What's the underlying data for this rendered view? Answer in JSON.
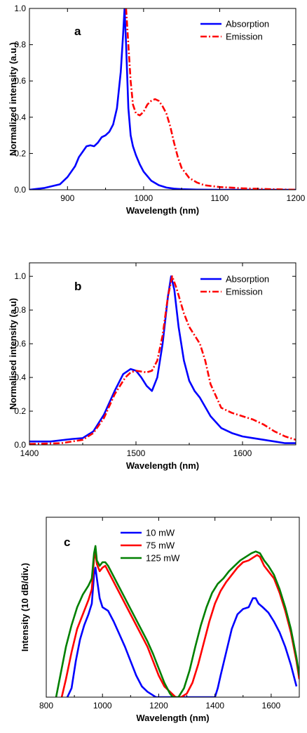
{
  "chart_data": [
    {
      "type": "line",
      "panel_label": "a",
      "xlabel": "Wavelength (nm)",
      "ylabel": "Normalized intensity (a.u.)",
      "xlim": [
        850,
        1200
      ],
      "ylim": [
        0,
        1.0
      ],
      "xticks": [
        900,
        1000,
        1100,
        1200
      ],
      "yticks": [
        0.0,
        0.2,
        0.4,
        0.6,
        0.8,
        1.0
      ],
      "xtick_labels": [
        "900",
        "1000",
        "1100",
        "1200"
      ],
      "ytick_labels": [
        "0.0",
        "0.2",
        "0.4",
        "0.6",
        "0.8",
        "1.0"
      ],
      "legend_position": "top-right",
      "series": [
        {
          "name": "Absorption",
          "color": "#0000ff",
          "style": "solid",
          "x": [
            850,
            870,
            890,
            900,
            910,
            915,
            920,
            925,
            930,
            935,
            940,
            945,
            950,
            955,
            960,
            965,
            970,
            973,
            975,
            977,
            980,
            983,
            986,
            990,
            995,
            1000,
            1010,
            1020,
            1030,
            1040,
            1050,
            1070,
            1100,
            1200
          ],
          "y": [
            0.0,
            0.01,
            0.03,
            0.07,
            0.13,
            0.18,
            0.21,
            0.24,
            0.245,
            0.24,
            0.26,
            0.29,
            0.3,
            0.32,
            0.36,
            0.45,
            0.65,
            0.85,
            1.0,
            0.8,
            0.45,
            0.3,
            0.24,
            0.19,
            0.14,
            0.1,
            0.05,
            0.025,
            0.012,
            0.006,
            0.003,
            0.001,
            0.0,
            0.0
          ]
        },
        {
          "name": "Emission",
          "color": "#ff0000",
          "style": "dashdot",
          "x": [
            977,
            980,
            983,
            986,
            990,
            995,
            1000,
            1005,
            1010,
            1015,
            1020,
            1025,
            1030,
            1035,
            1040,
            1045,
            1050,
            1060,
            1070,
            1080,
            1100,
            1130,
            1160,
            1200
          ],
          "y": [
            1.0,
            0.8,
            0.6,
            0.47,
            0.42,
            0.41,
            0.43,
            0.47,
            0.49,
            0.5,
            0.49,
            0.46,
            0.42,
            0.35,
            0.26,
            0.18,
            0.12,
            0.065,
            0.04,
            0.025,
            0.015,
            0.008,
            0.004,
            0.0
          ]
        }
      ]
    },
    {
      "type": "line",
      "panel_label": "b",
      "xlabel": "Wavelength (nm)",
      "ylabel": "Normalised intensity (a.u)",
      "xlim": [
        1400,
        1650
      ],
      "ylim": [
        0,
        1.08
      ],
      "xticks": [
        1400,
        1500,
        1600
      ],
      "yticks": [
        0.0,
        0.2,
        0.4,
        0.6,
        0.8,
        1.0
      ],
      "xtick_labels": [
        "1400",
        "1500",
        "1600"
      ],
      "ytick_labels": [
        "0.0",
        "0.2",
        "0.4",
        "0.6",
        "0.8",
        "1.0"
      ],
      "legend_position": "top-right",
      "series": [
        {
          "name": "Absorption",
          "color": "#0000ff",
          "style": "solid",
          "x": [
            1400,
            1420,
            1440,
            1450,
            1460,
            1470,
            1480,
            1488,
            1495,
            1500,
            1505,
            1510,
            1515,
            1520,
            1525,
            1530,
            1533,
            1536,
            1540,
            1545,
            1550,
            1555,
            1560,
            1570,
            1580,
            1590,
            1600,
            1610,
            1620,
            1630,
            1640,
            1650
          ],
          "y": [
            0.02,
            0.02,
            0.035,
            0.04,
            0.08,
            0.18,
            0.32,
            0.42,
            0.45,
            0.44,
            0.4,
            0.35,
            0.32,
            0.4,
            0.6,
            0.88,
            1.0,
            0.92,
            0.7,
            0.5,
            0.38,
            0.32,
            0.28,
            0.17,
            0.1,
            0.07,
            0.05,
            0.04,
            0.03,
            0.02,
            0.01,
            0.01
          ]
        },
        {
          "name": "Emission",
          "color": "#ff0000",
          "style": "dashdot",
          "x": [
            1400,
            1430,
            1450,
            1460,
            1470,
            1480,
            1490,
            1495,
            1500,
            1510,
            1515,
            1520,
            1525,
            1530,
            1534,
            1538,
            1545,
            1550,
            1555,
            1560,
            1565,
            1570,
            1580,
            1590,
            1600,
            1610,
            1620,
            1630,
            1640,
            1650
          ],
          "y": [
            0.005,
            0.01,
            0.03,
            0.07,
            0.16,
            0.3,
            0.4,
            0.43,
            0.44,
            0.43,
            0.44,
            0.5,
            0.65,
            0.88,
            1.0,
            0.93,
            0.78,
            0.7,
            0.65,
            0.6,
            0.5,
            0.36,
            0.22,
            0.19,
            0.17,
            0.15,
            0.12,
            0.08,
            0.05,
            0.03
          ]
        }
      ]
    },
    {
      "type": "line",
      "panel_label": "c",
      "xlabel": "Wavelength (nm)",
      "ylabel": "Intensity (10 dB/div.)",
      "xlim": [
        800,
        1700
      ],
      "ylim": [
        0,
        100
      ],
      "xticks": [
        800,
        1000,
        1200,
        1400,
        1600
      ],
      "xtick_labels": [
        "800",
        "1000",
        "1200",
        "1400",
        "1600"
      ],
      "legend_position": "top-left",
      "series": [
        {
          "name": "10 mW",
          "color": "#0000ff",
          "style": "solid",
          "x": [
            875,
            890,
            905,
            920,
            935,
            950,
            962,
            970,
            975,
            980,
            990,
            1000,
            1020,
            1040,
            1060,
            1080,
            1100,
            1120,
            1140,
            1160,
            1180,
            1190,
            1200,
            1400,
            1410,
            1420,
            1440,
            1460,
            1480,
            1500,
            1520,
            1535,
            1545,
            1555,
            1570,
            1590,
            1610,
            1630,
            1650,
            1670,
            1690
          ],
          "y": [
            0,
            5,
            20,
            32,
            40,
            46,
            52,
            68,
            72,
            66,
            55,
            50,
            48,
            42,
            35,
            28,
            20,
            12,
            6,
            3,
            1,
            0,
            0,
            0,
            5,
            12,
            25,
            38,
            46,
            49,
            50,
            55,
            55,
            52,
            50,
            47,
            42,
            36,
            28,
            18,
            6
          ]
        },
        {
          "name": "75 mW",
          "color": "#ff0000",
          "style": "solid",
          "x": [
            855,
            870,
            890,
            910,
            930,
            950,
            962,
            970,
            975,
            980,
            990,
            1000,
            1010,
            1020,
            1040,
            1060,
            1080,
            1100,
            1120,
            1140,
            1160,
            1180,
            1200,
            1220,
            1240,
            1260,
            1280,
            1300,
            1320,
            1340,
            1360,
            1380,
            1400,
            1420,
            1440,
            1460,
            1480,
            1500,
            1520,
            1540,
            1550,
            1560,
            1575,
            1590,
            1610,
            1630,
            1650,
            1670,
            1690,
            1700
          ],
          "y": [
            0,
            10,
            25,
            38,
            46,
            54,
            60,
            77,
            80,
            74,
            70,
            72,
            73,
            70,
            64,
            58,
            52,
            46,
            40,
            34,
            28,
            20,
            12,
            6,
            3,
            0,
            0,
            2,
            8,
            18,
            30,
            42,
            52,
            59,
            64,
            68,
            72,
            75,
            76,
            78,
            79,
            78,
            73,
            70,
            66,
            58,
            48,
            36,
            20,
            10
          ]
        },
        {
          "name": "125 mW",
          "color": "#008000",
          "style": "solid",
          "x": [
            835,
            850,
            870,
            890,
            910,
            930,
            950,
            962,
            970,
            975,
            980,
            990,
            1000,
            1010,
            1020,
            1040,
            1060,
            1080,
            1100,
            1120,
            1140,
            1160,
            1180,
            1200,
            1220,
            1240,
            1250,
            1270,
            1290,
            1310,
            1330,
            1350,
            1370,
            1390,
            1410,
            1430,
            1450,
            1470,
            1490,
            1510,
            1530,
            1545,
            1560,
            1575,
            1590,
            1610,
            1630,
            1650,
            1670,
            1690,
            1700
          ],
          "y": [
            0,
            12,
            28,
            40,
            50,
            57,
            62,
            66,
            80,
            84,
            76,
            73,
            75,
            75,
            73,
            67,
            61,
            55,
            49,
            43,
            37,
            31,
            24,
            16,
            8,
            2,
            0,
            0,
            5,
            15,
            28,
            40,
            50,
            58,
            63,
            66,
            70,
            73,
            76,
            78,
            80,
            81,
            80,
            76,
            73,
            68,
            60,
            50,
            38,
            22,
            12
          ]
        }
      ]
    }
  ]
}
